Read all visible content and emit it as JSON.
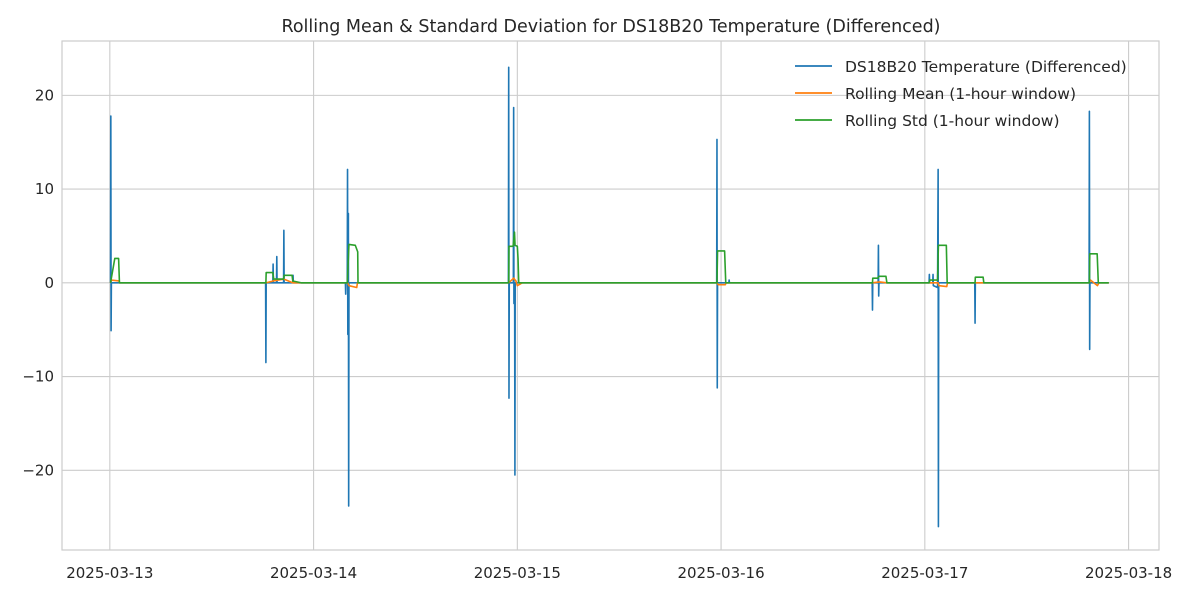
{
  "chart_data": {
    "type": "line",
    "title": "Rolling Mean & Standard Deviation for DS18B20 Temperature (Differenced)",
    "xlabel": "",
    "ylabel": "",
    "x_axis": "date",
    "xlim": [
      "2025-03-12 18:22",
      "2025-03-18 03:35"
    ],
    "ylim": [
      -28.5,
      25.8
    ],
    "x_ticks": [
      "2025-03-13",
      "2025-03-14",
      "2025-03-15",
      "2025-03-16",
      "2025-03-17",
      "2025-03-18"
    ],
    "y_ticks": [
      -20,
      -10,
      0,
      10,
      20
    ],
    "y_tick_labels": [
      "−20",
      "−10",
      "0",
      "10",
      "20"
    ],
    "grid": true,
    "legend_position": "top-right",
    "series": [
      {
        "name": "DS18B20 Temperature (Differenced)",
        "color": "#1f77b4",
        "points": [
          [
            "2025-03-13 00:05",
            0
          ],
          [
            "2025-03-13 00:07",
            17.8
          ],
          [
            "2025-03-13 00:09",
            -5.1
          ],
          [
            "2025-03-13 00:11",
            0
          ],
          [
            "2025-03-13 18:21",
            0
          ],
          [
            "2025-03-13 18:23",
            -8.5
          ],
          [
            "2025-03-13 18:25",
            0
          ],
          [
            "2025-03-13 19:12",
            0
          ],
          [
            "2025-03-13 19:14",
            2.0
          ],
          [
            "2025-03-13 19:16",
            0
          ],
          [
            "2025-03-13 19:38",
            0
          ],
          [
            "2025-03-13 19:40",
            2.8
          ],
          [
            "2025-03-13 19:42",
            0
          ],
          [
            "2025-03-13 20:28",
            0
          ],
          [
            "2025-03-13 20:30",
            5.6
          ],
          [
            "2025-03-13 20:32",
            0
          ],
          [
            "2025-03-13 21:33",
            0
          ],
          [
            "2025-03-13 21:35",
            0.8
          ],
          [
            "2025-03-13 21:37",
            0
          ],
          [
            "2025-03-14 03:45",
            0
          ],
          [
            "2025-03-14 03:47",
            -1.2
          ],
          [
            "2025-03-14 03:49",
            0
          ],
          [
            "2025-03-14 03:58",
            0
          ],
          [
            "2025-03-14 04:00",
            12.1
          ],
          [
            "2025-03-14 04:02",
            -5.5
          ],
          [
            "2025-03-14 04:04",
            0
          ],
          [
            "2025-03-14 04:06",
            7.4
          ],
          [
            "2025-03-14 04:08",
            -23.8
          ],
          [
            "2025-03-14 04:10",
            0
          ],
          [
            "2025-03-14 22:57",
            0
          ],
          [
            "2025-03-14 22:59",
            23.0
          ],
          [
            "2025-03-14 23:01",
            -12.3
          ],
          [
            "2025-03-14 23:03",
            0
          ],
          [
            "2025-03-14 23:32",
            0
          ],
          [
            "2025-03-14 23:34",
            18.7
          ],
          [
            "2025-03-14 23:36",
            -2.2
          ],
          [
            "2025-03-14 23:38",
            0
          ],
          [
            "2025-03-14 23:41",
            0
          ],
          [
            "2025-03-14 23:43",
            -20.5
          ],
          [
            "2025-03-14 23:45",
            0
          ],
          [
            "2025-03-15 23:29",
            0
          ],
          [
            "2025-03-15 23:31",
            15.3
          ],
          [
            "2025-03-15 23:33",
            -11.2
          ],
          [
            "2025-03-15 23:35",
            0
          ],
          [
            "2025-03-16 00:55",
            0
          ],
          [
            "2025-03-16 00:57",
            0.3
          ],
          [
            "2025-03-16 00:59",
            0
          ],
          [
            "2025-03-16 17:48",
            0
          ],
          [
            "2025-03-16 17:50",
            -2.9
          ],
          [
            "2025-03-16 17:52",
            0
          ],
          [
            "2025-03-16 18:30",
            0
          ],
          [
            "2025-03-16 18:32",
            4.0
          ],
          [
            "2025-03-16 18:34",
            -1.4
          ],
          [
            "2025-03-16 18:36",
            0
          ],
          [
            "2025-03-17 00:30",
            0
          ],
          [
            "2025-03-17 00:32",
            0.9
          ],
          [
            "2025-03-17 00:34",
            0
          ],
          [
            "2025-03-17 00:56",
            0
          ],
          [
            "2025-03-17 00:58",
            0.9
          ],
          [
            "2025-03-17 01:00",
            -0.3
          ],
          [
            "2025-03-17 01:30",
            -0.5
          ],
          [
            "2025-03-17 01:34",
            12.1
          ],
          [
            "2025-03-17 01:36",
            -26.0
          ],
          [
            "2025-03-17 01:38",
            0
          ],
          [
            "2025-03-17 05:53",
            0
          ],
          [
            "2025-03-17 05:55",
            -4.3
          ],
          [
            "2025-03-17 05:57",
            0
          ],
          [
            "2025-03-17 19:21",
            0
          ],
          [
            "2025-03-17 19:23",
            18.3
          ],
          [
            "2025-03-17 19:25",
            -7.1
          ],
          [
            "2025-03-17 19:27",
            0
          ],
          [
            "2025-03-17 21:40",
            0
          ]
        ]
      },
      {
        "name": "Rolling Mean (1-hour window)",
        "color": "#ff7f0e",
        "points": [
          [
            "2025-03-13 00:05",
            0
          ],
          [
            "2025-03-13 00:09",
            0.3
          ],
          [
            "2025-03-13 01:05",
            0.2
          ],
          [
            "2025-03-13 01:10",
            0
          ],
          [
            "2025-03-13 18:23",
            0
          ],
          [
            "2025-03-13 19:14",
            0.2
          ],
          [
            "2025-03-13 20:30",
            0.4
          ],
          [
            "2025-03-13 21:35",
            0
          ],
          [
            "2025-03-14 04:00",
            0
          ],
          [
            "2025-03-14 04:10",
            -0.3
          ],
          [
            "2025-03-14 05:05",
            -0.5
          ],
          [
            "2025-03-14 05:10",
            0
          ],
          [
            "2025-03-14 22:59",
            0
          ],
          [
            "2025-03-14 23:34",
            0.5
          ],
          [
            "2025-03-14 23:50",
            0.2
          ],
          [
            "2025-03-15 00:00",
            -0.3
          ],
          [
            "2025-03-15 00:35",
            0
          ],
          [
            "2025-03-15 23:31",
            0
          ],
          [
            "2025-03-15 23:40",
            -0.2
          ],
          [
            "2025-03-16 00:30",
            -0.2
          ],
          [
            "2025-03-16 00:35",
            0
          ],
          [
            "2025-03-16 17:50",
            0
          ],
          [
            "2025-03-16 18:40",
            0.1
          ],
          [
            "2025-03-16 19:30",
            0
          ],
          [
            "2025-03-17 01:34",
            0
          ],
          [
            "2025-03-17 01:40",
            -0.3
          ],
          [
            "2025-03-17 02:35",
            -0.4
          ],
          [
            "2025-03-17 02:40",
            0
          ],
          [
            "2025-03-17 19:23",
            0
          ],
          [
            "2025-03-17 19:30",
            0.3
          ],
          [
            "2025-03-17 20:20",
            -0.3
          ],
          [
            "2025-03-17 20:30",
            0
          ],
          [
            "2025-03-17 21:40",
            0
          ]
        ]
      },
      {
        "name": "Rolling Std (1-hour window)",
        "color": "#2ca02c",
        "points": [
          [
            "2025-03-13 00:05",
            0
          ],
          [
            "2025-03-13 00:35",
            2.6
          ],
          [
            "2025-03-13 01:02",
            2.6
          ],
          [
            "2025-03-13 01:08",
            0
          ],
          [
            "2025-03-13 18:23",
            0
          ],
          [
            "2025-03-13 18:25",
            1.1
          ],
          [
            "2025-03-13 19:12",
            1.1
          ],
          [
            "2025-03-13 19:18",
            0.4
          ],
          [
            "2025-03-13 20:28",
            0.4
          ],
          [
            "2025-03-13 20:32",
            0.8
          ],
          [
            "2025-03-13 21:28",
            0.8
          ],
          [
            "2025-03-13 21:33",
            0.2
          ],
          [
            "2025-03-13 22:35",
            0
          ],
          [
            "2025-03-14 03:58",
            0
          ],
          [
            "2025-03-14 04:10",
            4.1
          ],
          [
            "2025-03-14 04:55",
            4.0
          ],
          [
            "2025-03-14 05:12",
            3.3
          ],
          [
            "2025-03-14 05:14",
            0
          ],
          [
            "2025-03-14 22:59",
            0
          ],
          [
            "2025-03-14 23:01",
            3.9
          ],
          [
            "2025-03-14 23:30",
            3.9
          ],
          [
            "2025-03-14 23:40",
            5.4
          ],
          [
            "2025-03-14 23:44",
            4.0
          ],
          [
            "2025-03-15 00:00",
            3.9
          ],
          [
            "2025-03-15 00:05",
            2.6
          ],
          [
            "2025-03-15 00:10",
            0
          ],
          [
            "2025-03-15 23:31",
            0
          ],
          [
            "2025-03-15 23:35",
            3.4
          ],
          [
            "2025-03-16 00:25",
            3.4
          ],
          [
            "2025-03-16 00:33",
            0
          ],
          [
            "2025-03-16 17:50",
            0
          ],
          [
            "2025-03-16 17:52",
            0.5
          ],
          [
            "2025-03-16 18:28",
            0.5
          ],
          [
            "2025-03-16 18:35",
            0.7
          ],
          [
            "2025-03-16 19:25",
            0.7
          ],
          [
            "2025-03-16 19:32",
            0
          ],
          [
            "2025-03-17 00:30",
            0
          ],
          [
            "2025-03-17 00:35",
            0.3
          ],
          [
            "2025-03-17 01:30",
            0.3
          ],
          [
            "2025-03-17 01:36",
            4.0
          ],
          [
            "2025-03-17 02:32",
            4.0
          ],
          [
            "2025-03-17 02:38",
            0
          ],
          [
            "2025-03-17 05:55",
            0
          ],
          [
            "2025-03-17 05:57",
            0.6
          ],
          [
            "2025-03-17 06:52",
            0.6
          ],
          [
            "2025-03-17 06:57",
            0
          ],
          [
            "2025-03-17 19:23",
            0
          ],
          [
            "2025-03-17 19:26",
            3.1
          ],
          [
            "2025-03-17 20:18",
            3.1
          ],
          [
            "2025-03-17 20:26",
            0
          ],
          [
            "2025-03-17 21:40",
            0
          ]
        ]
      }
    ]
  }
}
